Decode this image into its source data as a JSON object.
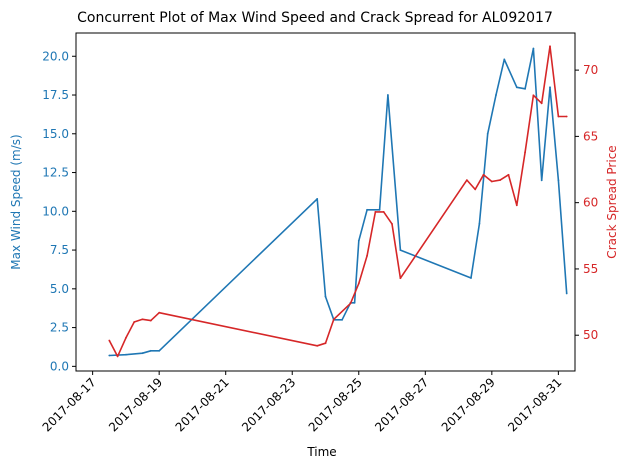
{
  "chart_data": {
    "type": "line",
    "title": "Concurrent Plot of Max Wind Speed and Crack Spread for AL092017",
    "xlabel": "Time",
    "x_type": "date",
    "xlim": [
      "2017-08-16 12:00",
      "2017-08-31 12:00"
    ],
    "x_tick_labels": [
      "2017-08-17",
      "2017-08-19",
      "2017-08-21",
      "2017-08-23",
      "2017-08-25",
      "2017-08-27",
      "2017-08-29",
      "2017-08-31"
    ],
    "grid": false,
    "legend": "none",
    "y_left": {
      "label": "Max Wind Speed (m/s)",
      "color": "#1f77b4",
      "ylim": [
        -0.3,
        21.5
      ],
      "ticks": [
        0.0,
        2.5,
        5.0,
        7.5,
        10.0,
        12.5,
        15.0,
        17.5,
        20.0
      ],
      "tick_labels": [
        "0.0",
        "2.5",
        "5.0",
        "7.5",
        "10.0",
        "12.5",
        "15.0",
        "17.5",
        "20.0"
      ]
    },
    "y_right": {
      "label": "Crack Spread Price",
      "color": "#d62728",
      "ylim": [
        47.3,
        72.8
      ],
      "ticks": [
        50,
        55,
        60,
        65,
        70
      ],
      "tick_labels": [
        "50",
        "55",
        "60",
        "65",
        "70"
      ]
    },
    "series": [
      {
        "axis": "left",
        "color": "#1f77b4",
        "x": [
          "2017-08-17 12:00",
          "2017-08-18 00:00",
          "2017-08-18 12:00",
          "2017-08-18 18:00",
          "2017-08-19 00:00",
          "2017-08-23 18:00",
          "2017-08-24 00:00",
          "2017-08-24 06:00",
          "2017-08-24 12:00",
          "2017-08-24 18:00",
          "2017-08-24 21:00",
          "2017-08-25 00:00",
          "2017-08-25 06:00",
          "2017-08-25 15:00",
          "2017-08-25 21:00",
          "2017-08-26 06:00",
          "2017-08-28 09:00",
          "2017-08-28 15:00",
          "2017-08-28 21:00",
          "2017-08-29 03:00",
          "2017-08-29 09:00",
          "2017-08-29 18:00",
          "2017-08-30 00:00",
          "2017-08-30 06:00",
          "2017-08-30 12:00",
          "2017-08-30 18:00",
          "2017-08-31 00:00",
          "2017-08-31 06:00"
        ],
        "values": [
          0.7,
          0.75,
          0.85,
          1.0,
          1.0,
          10.8,
          4.5,
          3.0,
          3.0,
          4.1,
          4.1,
          8.1,
          10.1,
          10.1,
          17.5,
          7.5,
          5.7,
          9.2,
          15.0,
          17.5,
          19.8,
          18.0,
          17.9,
          20.5,
          12.0,
          18.0,
          12.0,
          4.7
        ]
      },
      {
        "axis": "right",
        "color": "#d62728",
        "x": [
          "2017-08-17 12:00",
          "2017-08-17 18:00",
          "2017-08-18 00:00",
          "2017-08-18 06:00",
          "2017-08-18 12:00",
          "2017-08-18 18:00",
          "2017-08-19 00:00",
          "2017-08-23 18:00",
          "2017-08-24 00:00",
          "2017-08-24 06:00",
          "2017-08-24 18:00",
          "2017-08-25 00:00",
          "2017-08-25 06:00",
          "2017-08-25 12:00",
          "2017-08-25 18:00",
          "2017-08-26 00:00",
          "2017-08-26 06:00",
          "2017-08-28 06:00",
          "2017-08-28 12:00",
          "2017-08-28 18:00",
          "2017-08-29 00:00",
          "2017-08-29 06:00",
          "2017-08-29 12:00",
          "2017-08-29 18:00",
          "2017-08-30 00:00",
          "2017-08-30 06:00",
          "2017-08-30 12:00",
          "2017-08-30 18:00",
          "2017-08-31 00:00",
          "2017-08-31 06:00"
        ],
        "values": [
          49.6,
          48.4,
          49.8,
          51.0,
          51.2,
          51.1,
          51.7,
          49.2,
          49.4,
          51.2,
          52.4,
          53.9,
          56.0,
          59.3,
          59.3,
          58.4,
          54.3,
          61.7,
          61.0,
          62.1,
          61.6,
          61.7,
          62.1,
          59.8,
          63.8,
          68.1,
          67.5,
          71.8,
          66.5,
          66.5
        ]
      }
    ]
  }
}
